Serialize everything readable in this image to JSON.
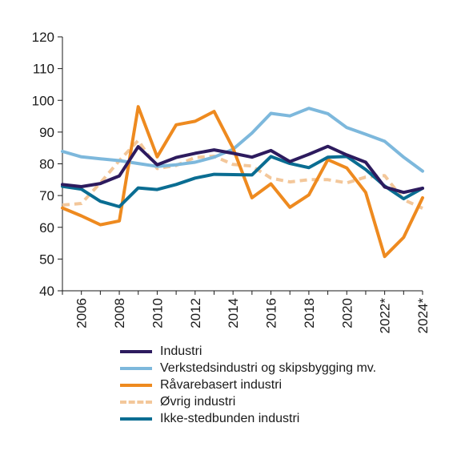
{
  "chart_data": {
    "type": "line",
    "title": "",
    "xlabel": "",
    "ylabel": "",
    "ylim": [
      40,
      120
    ],
    "yticks": [
      "40",
      "50",
      "60",
      "70",
      "80",
      "90",
      "100",
      "110",
      "120"
    ],
    "x": [
      2005,
      2006,
      2007,
      2008,
      2009,
      2010,
      2011,
      2012,
      2013,
      2014,
      2015,
      2016,
      2017,
      2018,
      2019,
      2020,
      2021,
      2022,
      2023,
      2024
    ],
    "xticks": [
      "2006",
      "2008",
      "2010",
      "2012",
      "2014",
      "2016",
      "2018",
      "2020",
      "2022*",
      "2024*"
    ],
    "grid": "none",
    "legend_position": "bottom",
    "series": [
      {
        "name": "Industri",
        "color": "#2d1b5e",
        "dash": "solid",
        "values": [
          73.5,
          72.8,
          73.8,
          76.2,
          85.4,
          79.7,
          82.0,
          83.3,
          84.4,
          83.3,
          82.1,
          84.2,
          80.7,
          83.0,
          85.5,
          82.8,
          80.5,
          72.7,
          71.0,
          72.3
        ]
      },
      {
        "name": "Verkstedsindustri og skipsbygging mv.",
        "color": "#7db8dc",
        "dash": "solid",
        "values": [
          83.9,
          82.2,
          81.6,
          81.0,
          80.1,
          79.2,
          79.7,
          80.5,
          82.1,
          84.6,
          89.7,
          95.9,
          95.1,
          97.5,
          95.8,
          91.4,
          89.3,
          87.1,
          82.1,
          77.7
        ]
      },
      {
        "name": "Råvarebasert industri",
        "color": "#ee8a1f",
        "dash": "solid",
        "values": [
          66.1,
          63.6,
          60.8,
          62.0,
          98.0,
          82.2,
          92.3,
          93.4,
          96.5,
          84.9,
          69.3,
          73.7,
          66.3,
          70.2,
          81.3,
          78.7,
          71.0,
          50.8,
          56.8,
          69.3
        ]
      },
      {
        "name": "Øvrig industri",
        "color": "#f3c79a",
        "dash": "dashed",
        "values": [
          67.0,
          67.5,
          74.0,
          81.0,
          87.4,
          78.5,
          79.5,
          82.0,
          82.4,
          79.8,
          79.3,
          75.5,
          74.3,
          75.0,
          75.0,
          74.0,
          75.8,
          76.3,
          68.7,
          66.0
        ]
      },
      {
        "name": "Ikke-stedbunden industri",
        "color": "#0a6d92",
        "dash": "solid",
        "values": [
          72.9,
          72.0,
          68.2,
          66.5,
          72.4,
          71.9,
          73.5,
          75.5,
          76.7,
          76.6,
          76.5,
          82.3,
          80.1,
          78.8,
          82.1,
          82.3,
          78.2,
          73.0,
          69.0,
          72.3
        ]
      }
    ]
  }
}
